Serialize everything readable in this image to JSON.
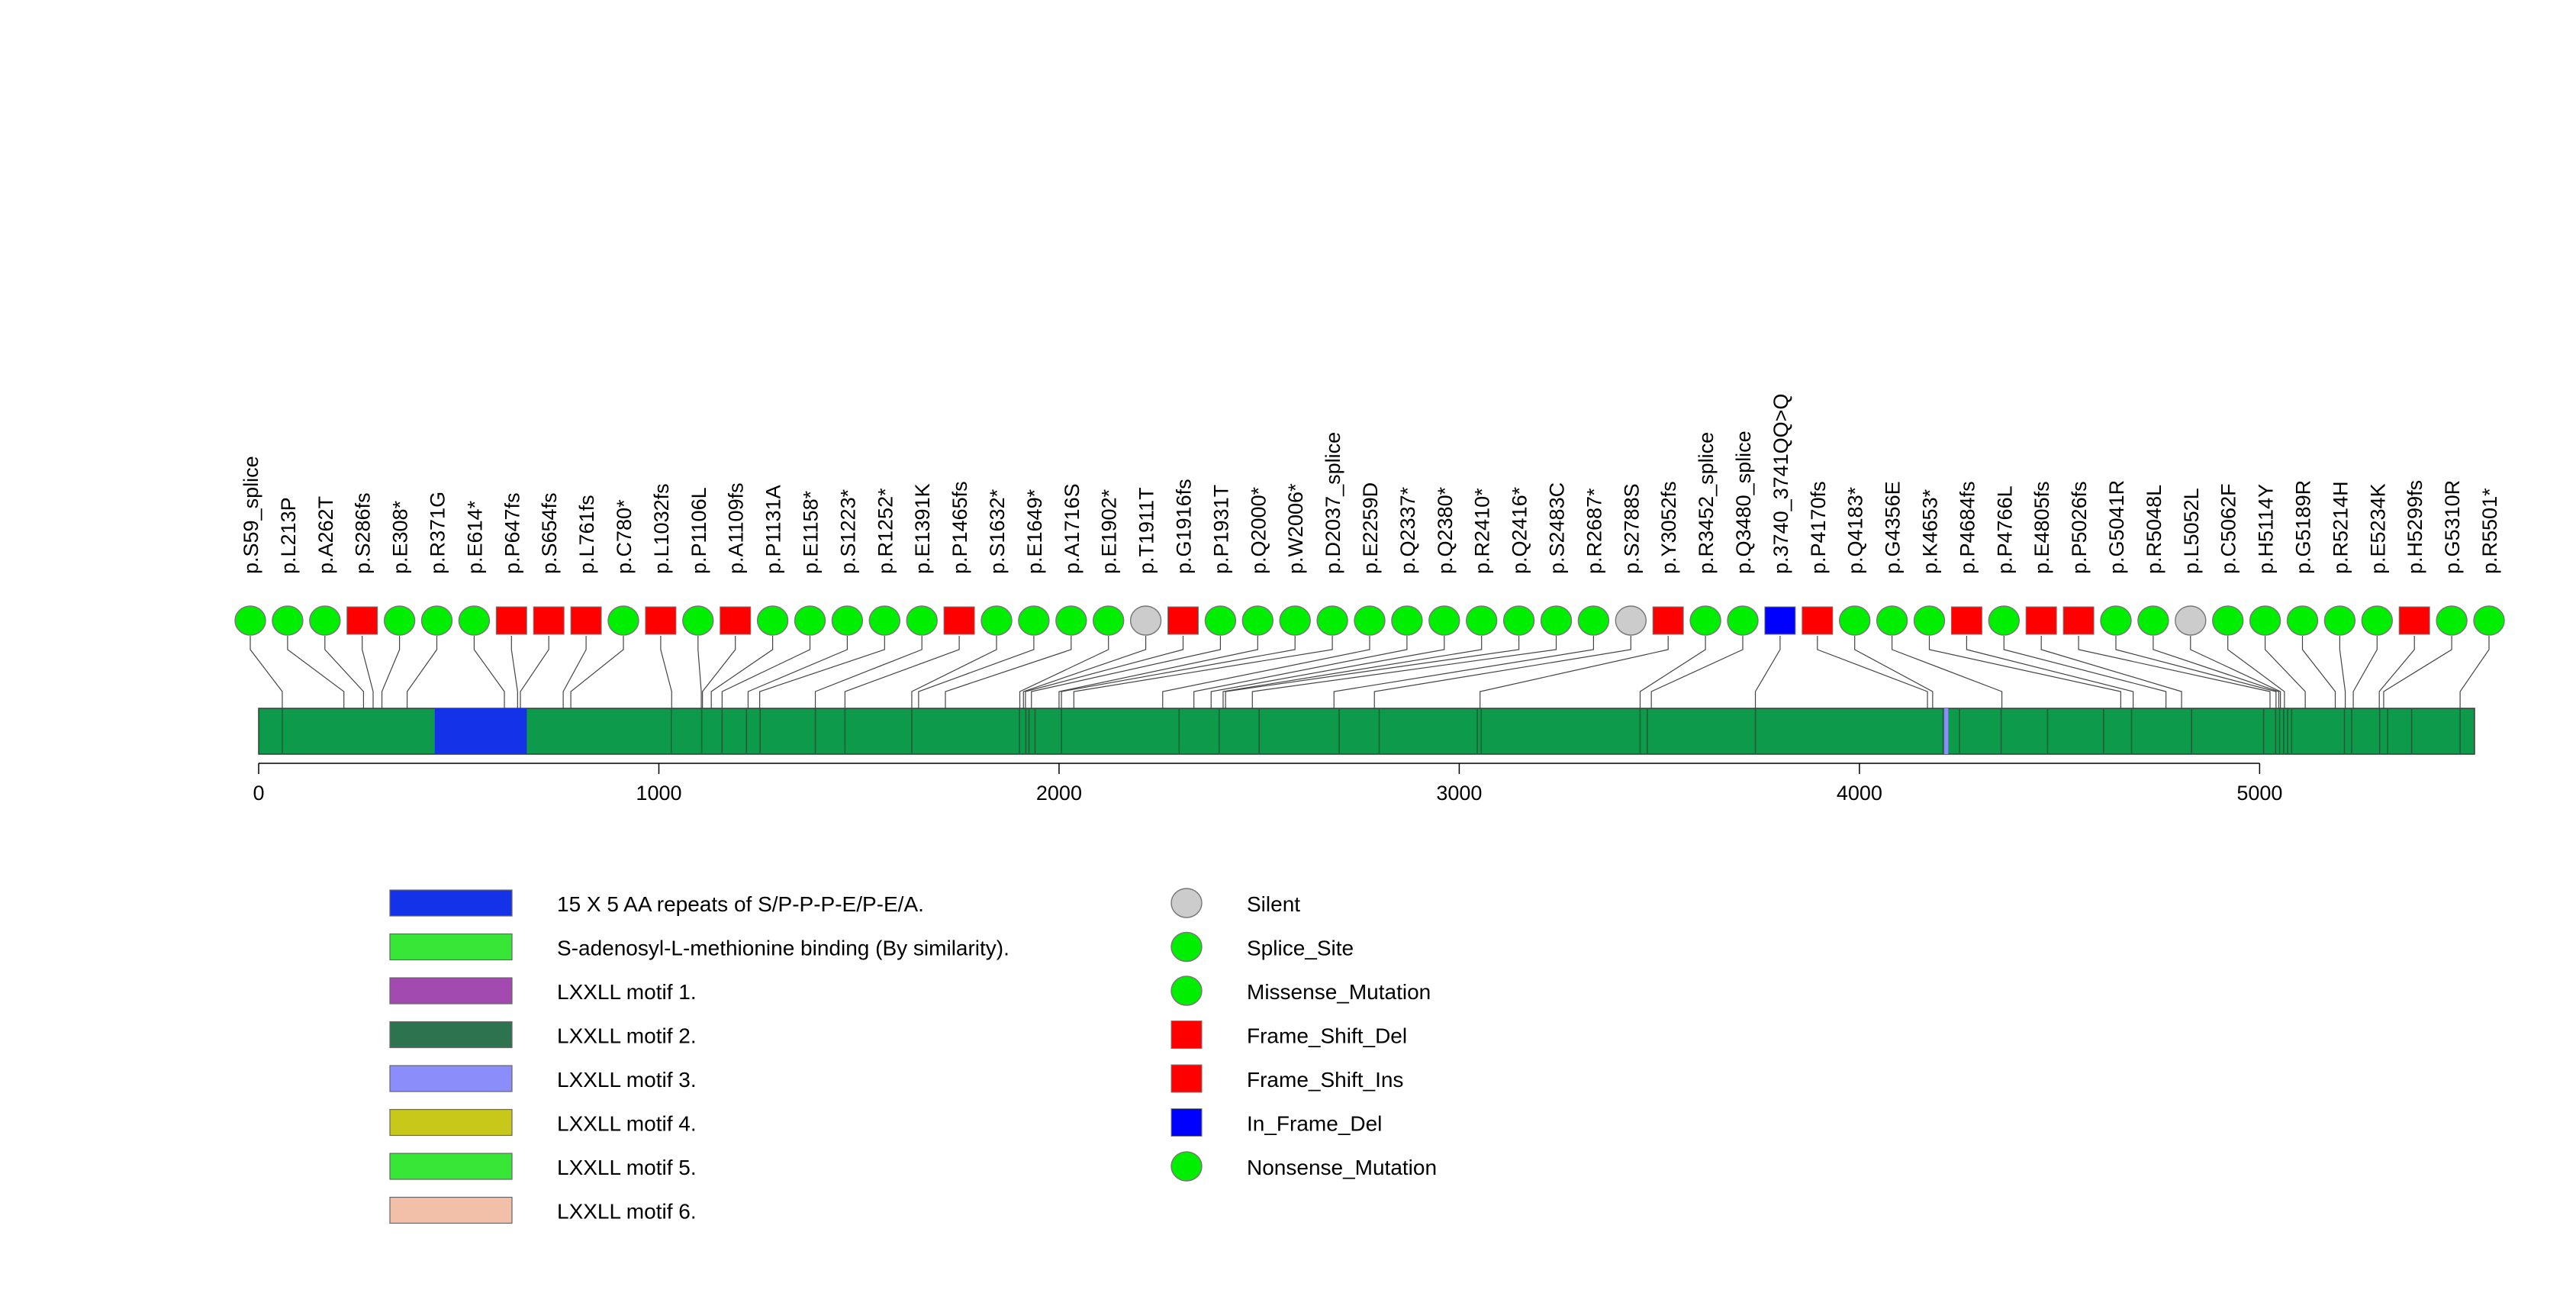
{
  "chart_data": {
    "type": "lollipop",
    "protein_length": 5537,
    "axis": {
      "min": 0,
      "max": 5537,
      "ticks": [
        0,
        1000,
        2000,
        3000,
        4000,
        5000
      ],
      "tick_labels": [
        "0",
        "1000",
        "2000",
        "3000",
        "4000",
        "5000"
      ]
    },
    "backbone_color": "#0e9a4b",
    "domains": [
      {
        "name": "15 X 5 AA repeats of S/P-P-P-E/P-E/A.",
        "start": 440,
        "end": 670,
        "color": "#1433e8"
      },
      {
        "name": "LXXLL motif 3.",
        "start": 4212,
        "end": 4222,
        "color": "#8b8efa"
      }
    ],
    "feature_ticks": [
      59,
      1031,
      1107,
      1158,
      1219,
      1253,
      1391,
      1465,
      1632,
      1901,
      1917,
      1925,
      1940,
      2006,
      2300,
      2400,
      2500,
      2700,
      2800,
      3045,
      3055,
      3452,
      3470,
      3740,
      4209,
      4250,
      4354,
      4470,
      4610,
      4680,
      4830,
      5010,
      5040,
      5050,
      5060,
      5070,
      5080,
      5212,
      5230,
      5300,
      5320,
      5380,
      5501
    ],
    "mutations": [
      {
        "label": "p.S59_splice",
        "pos": 59,
        "type": "Splice_Site"
      },
      {
        "label": "p.L213P",
        "pos": 213,
        "type": "Missense_Mutation"
      },
      {
        "label": "p.A262T",
        "pos": 262,
        "type": "Missense_Mutation"
      },
      {
        "label": "p.S286fs",
        "pos": 286,
        "type": "Frame_Shift_Del"
      },
      {
        "label": "p.E308*",
        "pos": 308,
        "type": "Nonsense_Mutation"
      },
      {
        "label": "p.R371G",
        "pos": 371,
        "type": "Missense_Mutation"
      },
      {
        "label": "p.E614*",
        "pos": 614,
        "type": "Nonsense_Mutation"
      },
      {
        "label": "p.P647fs",
        "pos": 647,
        "type": "Frame_Shift_Del"
      },
      {
        "label": "p.S654fs",
        "pos": 654,
        "type": "Frame_Shift_Del"
      },
      {
        "label": "p.L761fs",
        "pos": 761,
        "type": "Frame_Shift_Del"
      },
      {
        "label": "p.C780*",
        "pos": 780,
        "type": "Nonsense_Mutation"
      },
      {
        "label": "p.L1032fs",
        "pos": 1032,
        "type": "Frame_Shift_Del"
      },
      {
        "label": "p.P1106L",
        "pos": 1106,
        "type": "Missense_Mutation"
      },
      {
        "label": "p.A1109fs",
        "pos": 1109,
        "type": "Frame_Shift_Del"
      },
      {
        "label": "p.P1131A",
        "pos": 1131,
        "type": "Missense_Mutation"
      },
      {
        "label": "p.E1158*",
        "pos": 1158,
        "type": "Nonsense_Mutation"
      },
      {
        "label": "p.S1223*",
        "pos": 1223,
        "type": "Nonsense_Mutation"
      },
      {
        "label": "p.R1252*",
        "pos": 1252,
        "type": "Nonsense_Mutation"
      },
      {
        "label": "p.E1391K",
        "pos": 1391,
        "type": "Missense_Mutation"
      },
      {
        "label": "p.P1465fs",
        "pos": 1465,
        "type": "Frame_Shift_Del"
      },
      {
        "label": "p.S1632*",
        "pos": 1632,
        "type": "Nonsense_Mutation"
      },
      {
        "label": "p.E1649*",
        "pos": 1649,
        "type": "Nonsense_Mutation"
      },
      {
        "label": "p.A1716S",
        "pos": 1716,
        "type": "Missense_Mutation"
      },
      {
        "label": "p.E1902*",
        "pos": 1902,
        "type": "Nonsense_Mutation"
      },
      {
        "label": "p.T1911T",
        "pos": 1911,
        "type": "Silent"
      },
      {
        "label": "p.G1916fs",
        "pos": 1916,
        "type": "Frame_Shift_Del"
      },
      {
        "label": "p.P1931T",
        "pos": 1931,
        "type": "Missense_Mutation"
      },
      {
        "label": "p.Q2000*",
        "pos": 2000,
        "type": "Nonsense_Mutation"
      },
      {
        "label": "p.W2006*",
        "pos": 2006,
        "type": "Nonsense_Mutation"
      },
      {
        "label": "p.D2037_splice",
        "pos": 2037,
        "type": "Splice_Site"
      },
      {
        "label": "p.E2259D",
        "pos": 2259,
        "type": "Missense_Mutation"
      },
      {
        "label": "p.Q2337*",
        "pos": 2337,
        "type": "Nonsense_Mutation"
      },
      {
        "label": "p.Q2380*",
        "pos": 2380,
        "type": "Nonsense_Mutation"
      },
      {
        "label": "p.R2410*",
        "pos": 2410,
        "type": "Nonsense_Mutation"
      },
      {
        "label": "p.Q2416*",
        "pos": 2416,
        "type": "Nonsense_Mutation"
      },
      {
        "label": "p.S2483C",
        "pos": 2483,
        "type": "Missense_Mutation"
      },
      {
        "label": "p.R2687*",
        "pos": 2687,
        "type": "Nonsense_Mutation"
      },
      {
        "label": "p.S2788S",
        "pos": 2788,
        "type": "Silent"
      },
      {
        "label": "p.Y3052fs",
        "pos": 3052,
        "type": "Frame_Shift_Del"
      },
      {
        "label": "p.R3452_splice",
        "pos": 3452,
        "type": "Splice_Site"
      },
      {
        "label": "p.Q3480_splice",
        "pos": 3480,
        "type": "Splice_Site"
      },
      {
        "label": "p.3740_3741QQ>Q",
        "pos": 3740,
        "type": "In_Frame_Del"
      },
      {
        "label": "p.P4170fs",
        "pos": 4170,
        "type": "Frame_Shift_Del"
      },
      {
        "label": "p.Q4183*",
        "pos": 4183,
        "type": "Nonsense_Mutation"
      },
      {
        "label": "p.G4356E",
        "pos": 4356,
        "type": "Missense_Mutation"
      },
      {
        "label": "p.K4653*",
        "pos": 4653,
        "type": "Nonsense_Mutation"
      },
      {
        "label": "p.P4684fs",
        "pos": 4684,
        "type": "Frame_Shift_Del"
      },
      {
        "label": "p.P4766L",
        "pos": 4766,
        "type": "Missense_Mutation"
      },
      {
        "label": "p.E4805fs",
        "pos": 4805,
        "type": "Frame_Shift_Del"
      },
      {
        "label": "p.P5026fs",
        "pos": 5026,
        "type": "Frame_Shift_Del"
      },
      {
        "label": "p.G5041R",
        "pos": 5041,
        "type": "Missense_Mutation"
      },
      {
        "label": "p.R5048L",
        "pos": 5048,
        "type": "Missense_Mutation"
      },
      {
        "label": "p.L5052L",
        "pos": 5052,
        "type": "Silent"
      },
      {
        "label": "p.C5062F",
        "pos": 5062,
        "type": "Missense_Mutation"
      },
      {
        "label": "p.H5114Y",
        "pos": 5114,
        "type": "Missense_Mutation"
      },
      {
        "label": "p.G5189R",
        "pos": 5189,
        "type": "Missense_Mutation"
      },
      {
        "label": "p.R5214H",
        "pos": 5214,
        "type": "Missense_Mutation"
      },
      {
        "label": "p.E5234K",
        "pos": 5234,
        "type": "Missense_Mutation"
      },
      {
        "label": "p.H5299fs",
        "pos": 5299,
        "type": "Frame_Shift_Del"
      },
      {
        "label": "p.G5310R",
        "pos": 5310,
        "type": "Missense_Mutation"
      },
      {
        "label": "p.R5501*",
        "pos": 5501,
        "type": "Nonsense_Mutation"
      }
    ],
    "domain_legend": [
      {
        "label": "15 X 5 AA repeats of S/P-P-P-E/P-E/A.",
        "color": "#1433e8"
      },
      {
        "label": "S-adenosyl-L-methionine binding (By similarity).",
        "color": "#37e637"
      },
      {
        "label": "LXXLL motif 1.",
        "color": "#a24ab0"
      },
      {
        "label": "LXXLL motif 2.",
        "color": "#2e7350"
      },
      {
        "label": "LXXLL motif 3.",
        "color": "#8b8efa"
      },
      {
        "label": "LXXLL motif 4.",
        "color": "#c8c81a"
      },
      {
        "label": "LXXLL motif 5.",
        "color": "#37e637"
      },
      {
        "label": "LXXLL motif 6.",
        "color": "#f2c0a8"
      }
    ],
    "mutation_legend": [
      {
        "label": "Silent",
        "shape": "circle",
        "color": "#cccccc"
      },
      {
        "label": "Splice_Site",
        "shape": "circle",
        "color": "#00ee00"
      },
      {
        "label": "Missense_Mutation",
        "shape": "circle",
        "color": "#00ee00"
      },
      {
        "label": "Frame_Shift_Del",
        "shape": "square",
        "color": "#ff0000"
      },
      {
        "label": "Frame_Shift_Ins",
        "shape": "square",
        "color": "#ff0000"
      },
      {
        "label": "In_Frame_Del",
        "shape": "square",
        "color": "#0000ff"
      },
      {
        "label": "Nonsense_Mutation",
        "shape": "circle",
        "color": "#00ee00"
      }
    ],
    "type_styles": {
      "Silent": {
        "shape": "circle",
        "color": "#cccccc"
      },
      "Splice_Site": {
        "shape": "circle",
        "color": "#00ee00"
      },
      "Missense_Mutation": {
        "shape": "circle",
        "color": "#00ee00"
      },
      "Nonsense_Mutation": {
        "shape": "circle",
        "color": "#00ee00"
      },
      "Frame_Shift_Del": {
        "shape": "square",
        "color": "#ff0000"
      },
      "Frame_Shift_Ins": {
        "shape": "square",
        "color": "#ff0000"
      },
      "In_Frame_Del": {
        "shape": "square",
        "color": "#0000ff"
      }
    }
  }
}
